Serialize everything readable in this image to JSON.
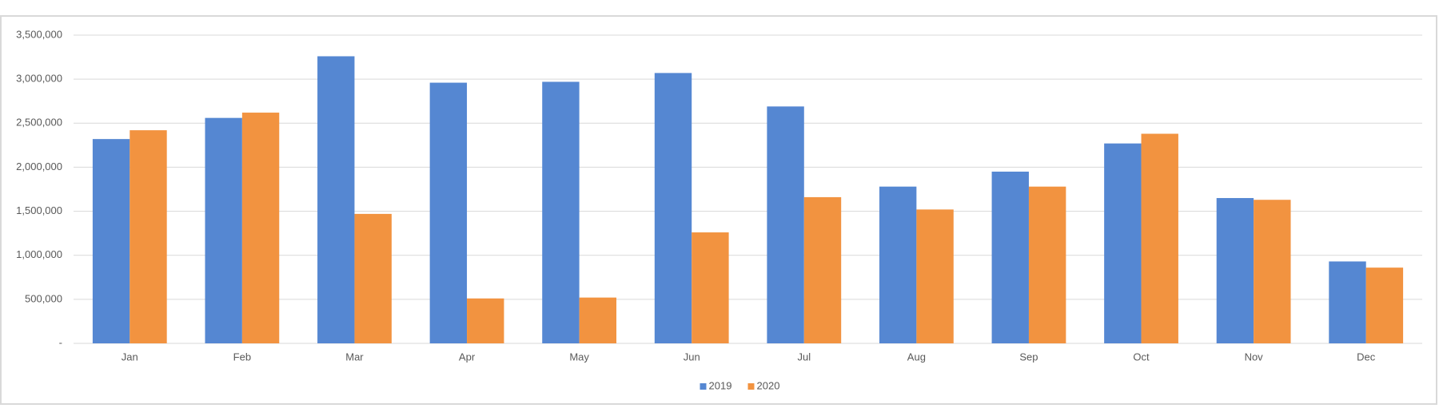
{
  "chart_data": {
    "type": "bar",
    "categories": [
      "Jan",
      "Feb",
      "Mar",
      "Apr",
      "May",
      "Jun",
      "Jul",
      "Aug",
      "Sep",
      "Oct",
      "Nov",
      "Dec"
    ],
    "series": [
      {
        "name": "2019",
        "color": "#5587d2",
        "values": [
          2320000,
          2560000,
          3260000,
          2960000,
          2970000,
          3070000,
          2690000,
          1780000,
          1950000,
          2270000,
          1650000,
          930000
        ]
      },
      {
        "name": "2020",
        "color": "#f29340",
        "values": [
          2420000,
          2620000,
          1470000,
          510000,
          520000,
          1260000,
          1660000,
          1520000,
          1780000,
          2380000,
          1630000,
          860000
        ]
      }
    ],
    "ylim": [
      0,
      3500000
    ],
    "yticks": [
      {
        "value": 0,
        "label": "-"
      },
      {
        "value": 500000,
        "label": "500,000"
      },
      {
        "value": 1000000,
        "label": "1,000,000"
      },
      {
        "value": 1500000,
        "label": "1,500,000"
      },
      {
        "value": 2000000,
        "label": "2,000,000"
      },
      {
        "value": 2500000,
        "label": "2,500,000"
      },
      {
        "value": 3000000,
        "label": "3,000,000"
      },
      {
        "value": 3500000,
        "label": "3,500,000"
      }
    ],
    "grid": true,
    "legend": "bottom"
  }
}
